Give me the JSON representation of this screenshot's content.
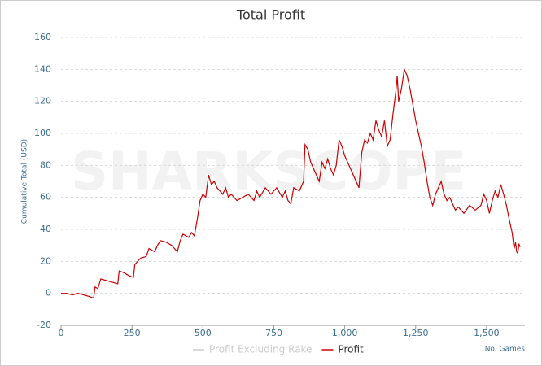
{
  "chart_data": {
    "type": "line",
    "title": "Total Profit",
    "watermark": "SHARKSCOPE",
    "y_label": "Cumulative Total (USD)",
    "x_label": "No. Games",
    "xlim": [
      0,
      1635
    ],
    "ylim": [
      -20,
      160
    ],
    "xticks": [
      0,
      250,
      500,
      750,
      {
        "value": 1000,
        "label": "1,000"
      },
      {
        "value": 1250,
        "label": "1,250"
      },
      {
        "value": 1500,
        "label": "1,500"
      }
    ],
    "yticks": [
      -20,
      0,
      20,
      40,
      60,
      80,
      100,
      120,
      140,
      160
    ],
    "grid": true,
    "x": [
      0,
      20,
      40,
      60,
      80,
      100,
      115,
      120,
      130,
      140,
      160,
      180,
      200,
      205,
      220,
      240,
      255,
      260,
      280,
      300,
      310,
      330,
      340,
      350,
      370,
      390,
      400,
      410,
      420,
      430,
      450,
      460,
      470,
      480,
      490,
      500,
      510,
      520,
      530,
      540,
      550,
      560,
      570,
      580,
      590,
      600,
      620,
      640,
      660,
      680,
      690,
      700,
      720,
      740,
      760,
      780,
      790,
      800,
      810,
      820,
      840,
      855,
      860,
      870,
      880,
      890,
      900,
      910,
      920,
      930,
      940,
      950,
      960,
      970,
      980,
      990,
      1000,
      1010,
      1020,
      1030,
      1040,
      1050,
      1060,
      1070,
      1080,
      1090,
      1100,
      1110,
      1120,
      1130,
      1140,
      1150,
      1160,
      1170,
      1180,
      1185,
      1190,
      1200,
      1210,
      1220,
      1230,
      1240,
      1250,
      1260,
      1270,
      1280,
      1290,
      1300,
      1310,
      1320,
      1330,
      1340,
      1350,
      1360,
      1370,
      1380,
      1390,
      1400,
      1420,
      1440,
      1460,
      1480,
      1490,
      1500,
      1510,
      1520,
      1530,
      1540,
      1550,
      1560,
      1570,
      1580,
      1590,
      1597,
      1602,
      1606,
      1610,
      1614,
      1618
    ],
    "series": [
      {
        "name": "Profit Excluding Rake",
        "color": "#cccccc",
        "visible": false
      },
      {
        "name": "Profit",
        "color": "#cc0000",
        "visible": true,
        "values": [
          0,
          0,
          -1,
          0,
          -1,
          -2,
          -3,
          4,
          3,
          9,
          8,
          7,
          6,
          14,
          13,
          11,
          10,
          18,
          22,
          23,
          28,
          26,
          30,
          33,
          32,
          30,
          28,
          26,
          33,
          37,
          35,
          38,
          36,
          46,
          58,
          62,
          60,
          74,
          68,
          70,
          66,
          64,
          62,
          66,
          60,
          62,
          58,
          60,
          62,
          58,
          64,
          60,
          66,
          62,
          66,
          60,
          64,
          58,
          56,
          66,
          64,
          70,
          93,
          90,
          82,
          78,
          74,
          70,
          82,
          78,
          84,
          78,
          74,
          80,
          96,
          92,
          86,
          82,
          78,
          74,
          70,
          66,
          88,
          96,
          94,
          100,
          96,
          108,
          102,
          98,
          108,
          92,
          96,
          112,
          126,
          136,
          120,
          128,
          140,
          136,
          128,
          118,
          108,
          100,
          92,
          82,
          70,
          60,
          55,
          62,
          66,
          70,
          62,
          58,
          60,
          56,
          52,
          54,
          50,
          55,
          52,
          55,
          62,
          58,
          50,
          58,
          64,
          60,
          68,
          62,
          55,
          46,
          38,
          28,
          32,
          26,
          25,
          31,
          29
        ]
      }
    ]
  }
}
